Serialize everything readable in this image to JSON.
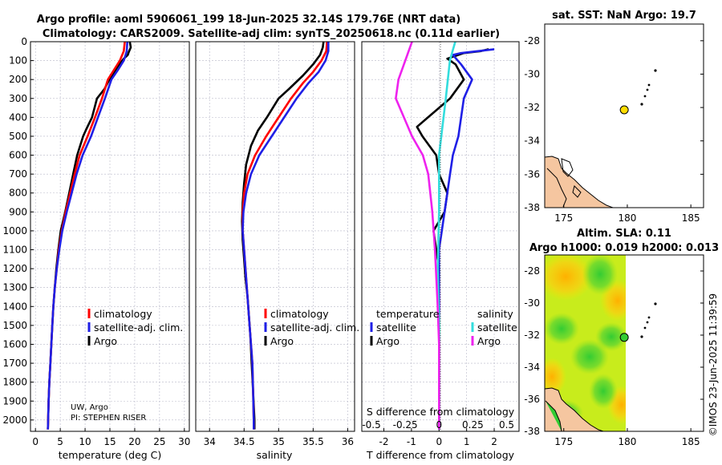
{
  "title": {
    "line1": "Argo profile: aoml 5906061_199 18-Jun-2025 32.14S 179.76E (NRT data)",
    "line2": "Climatology: CARS2009. Satellite-adj clim: synTS_20250618.nc (0.11d earlier)"
  },
  "credits": {
    "institution": "UW, Argo",
    "pi": "PI: STEPHEN RISER"
  },
  "stamp": "©IMOS 23-Jun-2025 11:39:59",
  "colors": {
    "argo": "#000000",
    "clim": "#ff0000",
    "sat": "#1f1fe6",
    "salt": "#33dddd",
    "saltsat": "#ee22ee",
    "float": "#ffdd00"
  },
  "legend_main": [
    "climatology",
    "satellite-adj. clim.",
    "Argo"
  ],
  "legend_diff": {
    "temperature": "temperature",
    "salinity": "salinity",
    "satellite": "satellite",
    "argo": "Argo"
  },
  "chart_data": [
    {
      "type": "line",
      "name": "temperature",
      "xlabel": "temperature (deg C)",
      "ylabel": "",
      "xlim": [
        -1,
        31
      ],
      "ylim": [
        2060,
        0
      ],
      "xticks": [
        0,
        5,
        10,
        15,
        20,
        25,
        30
      ],
      "yticks": [
        0,
        100,
        200,
        300,
        400,
        500,
        600,
        700,
        800,
        900,
        1000,
        1100,
        1200,
        1300,
        1400,
        1500,
        1600,
        1700,
        1800,
        1900,
        2000
      ],
      "series": [
        {
          "name": "Argo",
          "color": "#000000",
          "points": [
            [
              19.0,
              0
            ],
            [
              19.2,
              30
            ],
            [
              18.8,
              55
            ],
            [
              18.6,
              70
            ],
            [
              17.8,
              90
            ],
            [
              16.6,
              130
            ],
            [
              14.9,
              200
            ],
            [
              13.9,
              250
            ],
            [
              12.4,
              300
            ],
            [
              11.4,
              400
            ],
            [
              10.3,
              460
            ],
            [
              9.6,
              500
            ],
            [
              8.4,
              600
            ],
            [
              7.6,
              700
            ],
            [
              6.8,
              800
            ],
            [
              6.0,
              900
            ],
            [
              5.1,
              1000
            ],
            [
              4.6,
              1100
            ],
            [
              4.2,
              1200
            ],
            [
              3.9,
              1300
            ],
            [
              3.6,
              1400
            ],
            [
              3.4,
              1500
            ],
            [
              3.2,
              1600
            ],
            [
              3.0,
              1700
            ],
            [
              2.8,
              1800
            ],
            [
              2.65,
              1900
            ],
            [
              2.55,
              2000
            ],
            [
              2.5,
              2050
            ]
          ]
        },
        {
          "name": "climatology",
          "color": "#ff0000",
          "points": [
            [
              18.0,
              0
            ],
            [
              17.8,
              50
            ],
            [
              17.0,
              100
            ],
            [
              15.8,
              150
            ],
            [
              14.6,
              200
            ],
            [
              13.4,
              300
            ],
            [
              12.0,
              400
            ],
            [
              10.5,
              500
            ],
            [
              8.9,
              600
            ],
            [
              7.9,
              700
            ],
            [
              7.0,
              800
            ],
            [
              6.1,
              900
            ],
            [
              5.3,
              1000
            ],
            [
              4.7,
              1100
            ],
            [
              4.3,
              1200
            ],
            [
              3.9,
              1300
            ],
            [
              3.6,
              1400
            ],
            [
              3.4,
              1500
            ],
            [
              3.2,
              1600
            ],
            [
              3.0,
              1700
            ],
            [
              2.8,
              1800
            ],
            [
              2.65,
              1900
            ],
            [
              2.55,
              2000
            ],
            [
              2.5,
              2050
            ]
          ]
        },
        {
          "name": "satellite-adj. clim.",
          "color": "#1f1fe6",
          "points": [
            [
              18.5,
              0
            ],
            [
              18.4,
              50
            ],
            [
              17.8,
              100
            ],
            [
              16.6,
              150
            ],
            [
              15.3,
              200
            ],
            [
              14.0,
              300
            ],
            [
              12.6,
              400
            ],
            [
              11.2,
              500
            ],
            [
              9.5,
              600
            ],
            [
              8.3,
              700
            ],
            [
              7.3,
              800
            ],
            [
              6.3,
              900
            ],
            [
              5.4,
              1000
            ],
            [
              4.8,
              1100
            ],
            [
              4.3,
              1200
            ],
            [
              3.9,
              1300
            ],
            [
              3.6,
              1400
            ],
            [
              3.4,
              1500
            ],
            [
              3.2,
              1600
            ],
            [
              3.0,
              1700
            ],
            [
              2.8,
              1800
            ],
            [
              2.65,
              1900
            ],
            [
              2.55,
              2000
            ],
            [
              2.5,
              2050
            ]
          ]
        }
      ]
    },
    {
      "type": "line",
      "name": "salinity",
      "xlabel": "salinity",
      "xlim": [
        33.8,
        36.1
      ],
      "ylim": [
        2060,
        0
      ],
      "xticks": [
        34,
        34.5,
        35,
        35.5,
        36
      ],
      "series": [
        {
          "name": "Argo",
          "color": "#000000",
          "points": [
            [
              35.65,
              0
            ],
            [
              35.64,
              30
            ],
            [
              35.6,
              70
            ],
            [
              35.5,
              120
            ],
            [
              35.35,
              180
            ],
            [
              35.15,
              250
            ],
            [
              35.0,
              300
            ],
            [
              34.83,
              400
            ],
            [
              34.7,
              470
            ],
            [
              34.6,
              550
            ],
            [
              34.53,
              650
            ],
            [
              34.5,
              750
            ],
            [
              34.48,
              850
            ],
            [
              34.47,
              950
            ],
            [
              34.48,
              1050
            ],
            [
              34.5,
              1150
            ],
            [
              34.52,
              1250
            ],
            [
              34.55,
              1350
            ],
            [
              34.57,
              1450
            ],
            [
              34.59,
              1550
            ],
            [
              34.61,
              1700
            ],
            [
              34.63,
              1850
            ],
            [
              34.65,
              2000
            ],
            [
              34.65,
              2050
            ]
          ]
        },
        {
          "name": "climatology",
          "color": "#ff0000",
          "points": [
            [
              35.7,
              0
            ],
            [
              35.69,
              50
            ],
            [
              35.62,
              100
            ],
            [
              35.5,
              160
            ],
            [
              35.35,
              220
            ],
            [
              35.18,
              300
            ],
            [
              35.0,
              400
            ],
            [
              34.82,
              500
            ],
            [
              34.66,
              600
            ],
            [
              34.55,
              700
            ],
            [
              34.5,
              800
            ],
            [
              34.48,
              900
            ],
            [
              34.48,
              1000
            ],
            [
              34.5,
              1100
            ],
            [
              34.52,
              1200
            ],
            [
              34.54,
              1300
            ],
            [
              34.56,
              1400
            ],
            [
              34.58,
              1500
            ],
            [
              34.6,
              1600
            ],
            [
              34.62,
              1700
            ],
            [
              34.63,
              1850
            ],
            [
              34.64,
              2000
            ],
            [
              34.64,
              2050
            ]
          ]
        },
        {
          "name": "satellite-adj. clim.",
          "color": "#1f1fe6",
          "points": [
            [
              35.72,
              0
            ],
            [
              35.72,
              50
            ],
            [
              35.68,
              100
            ],
            [
              35.58,
              160
            ],
            [
              35.43,
              220
            ],
            [
              35.26,
              300
            ],
            [
              35.08,
              400
            ],
            [
              34.9,
              500
            ],
            [
              34.72,
              600
            ],
            [
              34.6,
              700
            ],
            [
              34.53,
              800
            ],
            [
              34.49,
              900
            ],
            [
              34.48,
              1000
            ],
            [
              34.5,
              1100
            ],
            [
              34.52,
              1200
            ],
            [
              34.54,
              1300
            ],
            [
              34.56,
              1400
            ],
            [
              34.58,
              1500
            ],
            [
              34.6,
              1600
            ],
            [
              34.62,
              1700
            ],
            [
              34.63,
              1850
            ],
            [
              34.64,
              2000
            ],
            [
              34.64,
              2050
            ]
          ]
        }
      ]
    },
    {
      "type": "line",
      "name": "difference from climatology",
      "xlabel": "T difference from climatology",
      "xlabel_top": "S difference from climatology",
      "xlim": [
        -2.8,
        2.9
      ],
      "ylim": [
        2060,
        0
      ],
      "xticks": [
        -2,
        -1,
        0,
        1,
        2
      ],
      "xticks_top": [
        -0.5,
        -0.25,
        0,
        0.25,
        0.5
      ],
      "series": [
        {
          "name": "temperature Argo",
          "color": "#000000",
          "points": [
            [
              1.8,
              40
            ],
            [
              1.5,
              50
            ],
            [
              0.9,
              60
            ],
            [
              0.3,
              90
            ],
            [
              0.6,
              120
            ],
            [
              0.9,
              200
            ],
            [
              0.4,
              300
            ],
            [
              -0.4,
              400
            ],
            [
              -0.8,
              450
            ],
            [
              -0.6,
              500
            ],
            [
              -0.1,
              600
            ],
            [
              0.0,
              700
            ],
            [
              0.3,
              800
            ],
            [
              0.2,
              900
            ],
            [
              -0.2,
              1000
            ],
            [
              -0.1,
              1100
            ],
            [
              0.0,
              1200
            ],
            [
              0.0,
              1500
            ],
            [
              0.0,
              2050
            ]
          ]
        },
        {
          "name": "temperature satellite",
          "color": "#1f1fe6",
          "points": [
            [
              2.0,
              40
            ],
            [
              0.8,
              60
            ],
            [
              0.5,
              70
            ],
            [
              0.8,
              120
            ],
            [
              1.2,
              200
            ],
            [
              0.9,
              300
            ],
            [
              0.8,
              400
            ],
            [
              0.7,
              500
            ],
            [
              0.5,
              600
            ],
            [
              0.4,
              700
            ],
            [
              0.3,
              800
            ],
            [
              0.2,
              900
            ],
            [
              0.0,
              1100
            ],
            [
              0.0,
              1500
            ],
            [
              0.0,
              2050
            ]
          ]
        },
        {
          "name": "salinity satellite",
          "color": "#33dddd",
          "points": [
            [
              0.12,
              0
            ],
            [
              0.1,
              50
            ],
            [
              0.08,
              100
            ],
            [
              0.05,
              300
            ],
            [
              0.0,
              600
            ],
            [
              0.0,
              900
            ],
            [
              -0.01,
              1200
            ],
            [
              0.0,
              1500
            ],
            [
              0.0,
              2050
            ]
          ]
        },
        {
          "name": "salinity Argo",
          "color": "#ee22ee",
          "points": [
            [
              -0.2,
              0
            ],
            [
              -0.25,
              100
            ],
            [
              -0.3,
              200
            ],
            [
              -0.32,
              300
            ],
            [
              -0.26,
              400
            ],
            [
              -0.2,
              500
            ],
            [
              -0.12,
              600
            ],
            [
              -0.08,
              700
            ],
            [
              -0.05,
              900
            ],
            [
              -0.03,
              1100
            ],
            [
              -0.01,
              1400
            ],
            [
              0.0,
              1600
            ],
            [
              0.0,
              2050
            ]
          ]
        }
      ]
    },
    {
      "type": "scatter",
      "name": "sat. SST map",
      "title": "sat. SST: NaN Argo: 19.7",
      "xlim": [
        173.5,
        186
      ],
      "ylim": [
        -38,
        -27
      ],
      "xticks": [
        175,
        180,
        185
      ],
      "yticks": [
        -28,
        -30,
        -32,
        -34,
        -36,
        -38
      ],
      "argo_position": [
        179.76,
        -32.14
      ]
    },
    {
      "type": "heatmap",
      "name": "Altimetry SLA map",
      "title": "Altim. SLA: 0.11",
      "title2": "Argo h1000: 0.019 h2000: 0.013",
      "xlim": [
        173.5,
        186
      ],
      "ylim": [
        -38,
        -27
      ],
      "xticks": [
        175,
        180,
        185
      ],
      "yticks": [
        -28,
        -30,
        -32,
        -34,
        -36,
        -38
      ],
      "argo_position": [
        179.76,
        -32.14
      ]
    }
  ]
}
